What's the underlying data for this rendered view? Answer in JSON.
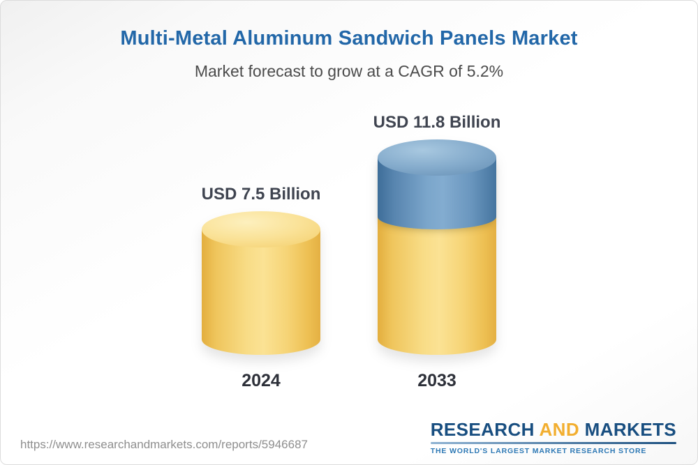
{
  "colors": {
    "title_blue": "#2267A8",
    "label_dark": "#3F4450",
    "logo_navy": "#184E80",
    "logo_gold": "#F2AE2F",
    "tagline_blue": "#2E79B5",
    "url_gray": "#8E8E8E"
  },
  "header": {
    "title": "Multi-Metal Aluminum Sandwich Panels Market",
    "subtitle": "Market forecast to grow at a CAGR of 5.2%"
  },
  "chart_data": {
    "type": "bar",
    "bar_style": "3d-cylinder",
    "title": "Multi-Metal Aluminum Sandwich Panels Market",
    "subtitle": "Market forecast to grow at a CAGR of 5.2%",
    "unit": "USD Billion",
    "categories": [
      "2024",
      "2033"
    ],
    "values": [
      7.5,
      11.8
    ],
    "value_labels": [
      "USD 7.5 Billion",
      "USD 11.8 Billion"
    ],
    "cagr_percent": 5.2,
    "base_color": "#F3CD6B",
    "growth_segment_color": "#6C9AC4",
    "axes": "none",
    "legend": "none",
    "ylim": [
      0,
      12
    ]
  },
  "footer": {
    "url": "https://www.researchandmarkets.com/reports/5946687",
    "logo": {
      "research": "RESEARCH",
      "and": "AND",
      "markets": "MARKETS",
      "tagline": "THE WORLD'S LARGEST MARKET RESEARCH STORE"
    }
  }
}
